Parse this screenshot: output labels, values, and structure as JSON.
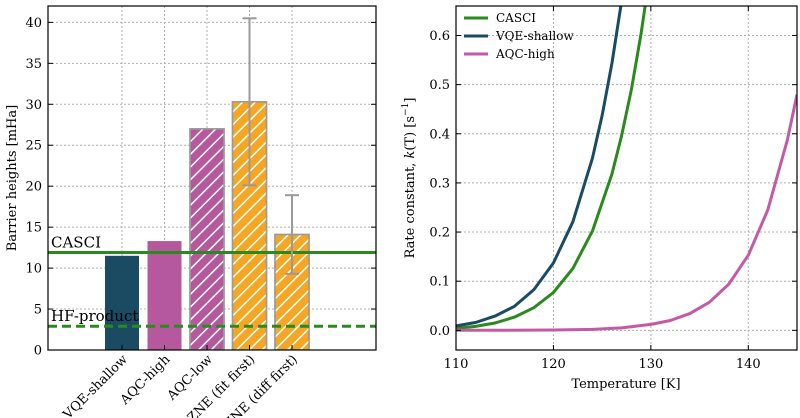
{
  "chart_data": [
    {
      "type": "bar",
      "title": "",
      "xlabel": "",
      "ylabel": "Barrier heights [mHa]",
      "ylim": [
        0,
        42
      ],
      "yticks": [
        0,
        5,
        10,
        15,
        20,
        25,
        30,
        35,
        40
      ],
      "grid": true,
      "categories": [
        "VQE-shallow",
        "AQC-high",
        "AQC-low",
        "ZNE (fit first)",
        "ZNE (diff first)"
      ],
      "values": [
        11.5,
        13.3,
        27.0,
        30.3,
        14.1
      ],
      "error_bars": [
        null,
        null,
        null,
        10.2,
        4.8
      ],
      "bar_colors": [
        "#1b4a63",
        "#b5589e",
        "#b5589e",
        "#f5a623",
        "#f5a623"
      ],
      "hatched": [
        false,
        false,
        true,
        true,
        true
      ],
      "reference_lines": [
        {
          "label": "CASCI",
          "value": 11.9,
          "color": "#2a8a1e",
          "style": "solid"
        },
        {
          "label": "HF-product",
          "value": 2.9,
          "color": "#2a8a1e",
          "style": "dashed"
        }
      ]
    },
    {
      "type": "line",
      "title": "",
      "xlabel": "Temperature [K]",
      "ylabel_prefix": "Rate constant, ",
      "ylabel_italic": "k",
      "ylabel_paren": "(T)",
      "ylabel_unit": " [s",
      "ylabel_sup": "−1",
      "ylabel_close": "]",
      "xlim": [
        110,
        145
      ],
      "ylim": [
        -0.04,
        0.66
      ],
      "xticks": [
        110,
        120,
        130,
        140
      ],
      "yticks": [
        0.0,
        0.1,
        0.2,
        0.3,
        0.4,
        0.5,
        0.6
      ],
      "ytick_labels": [
        "0.0",
        "0.1",
        "0.2",
        "0.3",
        "0.4",
        "0.5",
        "0.6"
      ],
      "grid": true,
      "legend_position": "top-left",
      "series": [
        {
          "name": "CASCI",
          "color": "#2a8a1e",
          "x": [
            110,
            112,
            114,
            116,
            118,
            120,
            122,
            124,
            126,
            127,
            128,
            129,
            130
          ],
          "y": [
            0.004,
            0.008,
            0.015,
            0.027,
            0.046,
            0.077,
            0.126,
            0.202,
            0.318,
            0.396,
            0.49,
            0.604,
            0.74
          ]
        },
        {
          "name": "VQE-shallow",
          "color": "#1b4a63",
          "x": [
            110,
            112,
            114,
            116,
            118,
            120,
            122,
            124,
            125,
            126,
            127,
            128
          ],
          "y": [
            0.009,
            0.016,
            0.029,
            0.049,
            0.083,
            0.137,
            0.221,
            0.35,
            0.437,
            0.543,
            0.67,
            0.82
          ]
        },
        {
          "name": "AQC-high",
          "color": "#c45aa6",
          "x": [
            110,
            115,
            120,
            124,
            127,
            130,
            132,
            134,
            136,
            138,
            140,
            142,
            144,
            145
          ],
          "y": [
            0.0,
            0.0,
            0.0007,
            0.002,
            0.005,
            0.012,
            0.02,
            0.034,
            0.057,
            0.094,
            0.153,
            0.245,
            0.387,
            0.48
          ]
        }
      ]
    }
  ]
}
